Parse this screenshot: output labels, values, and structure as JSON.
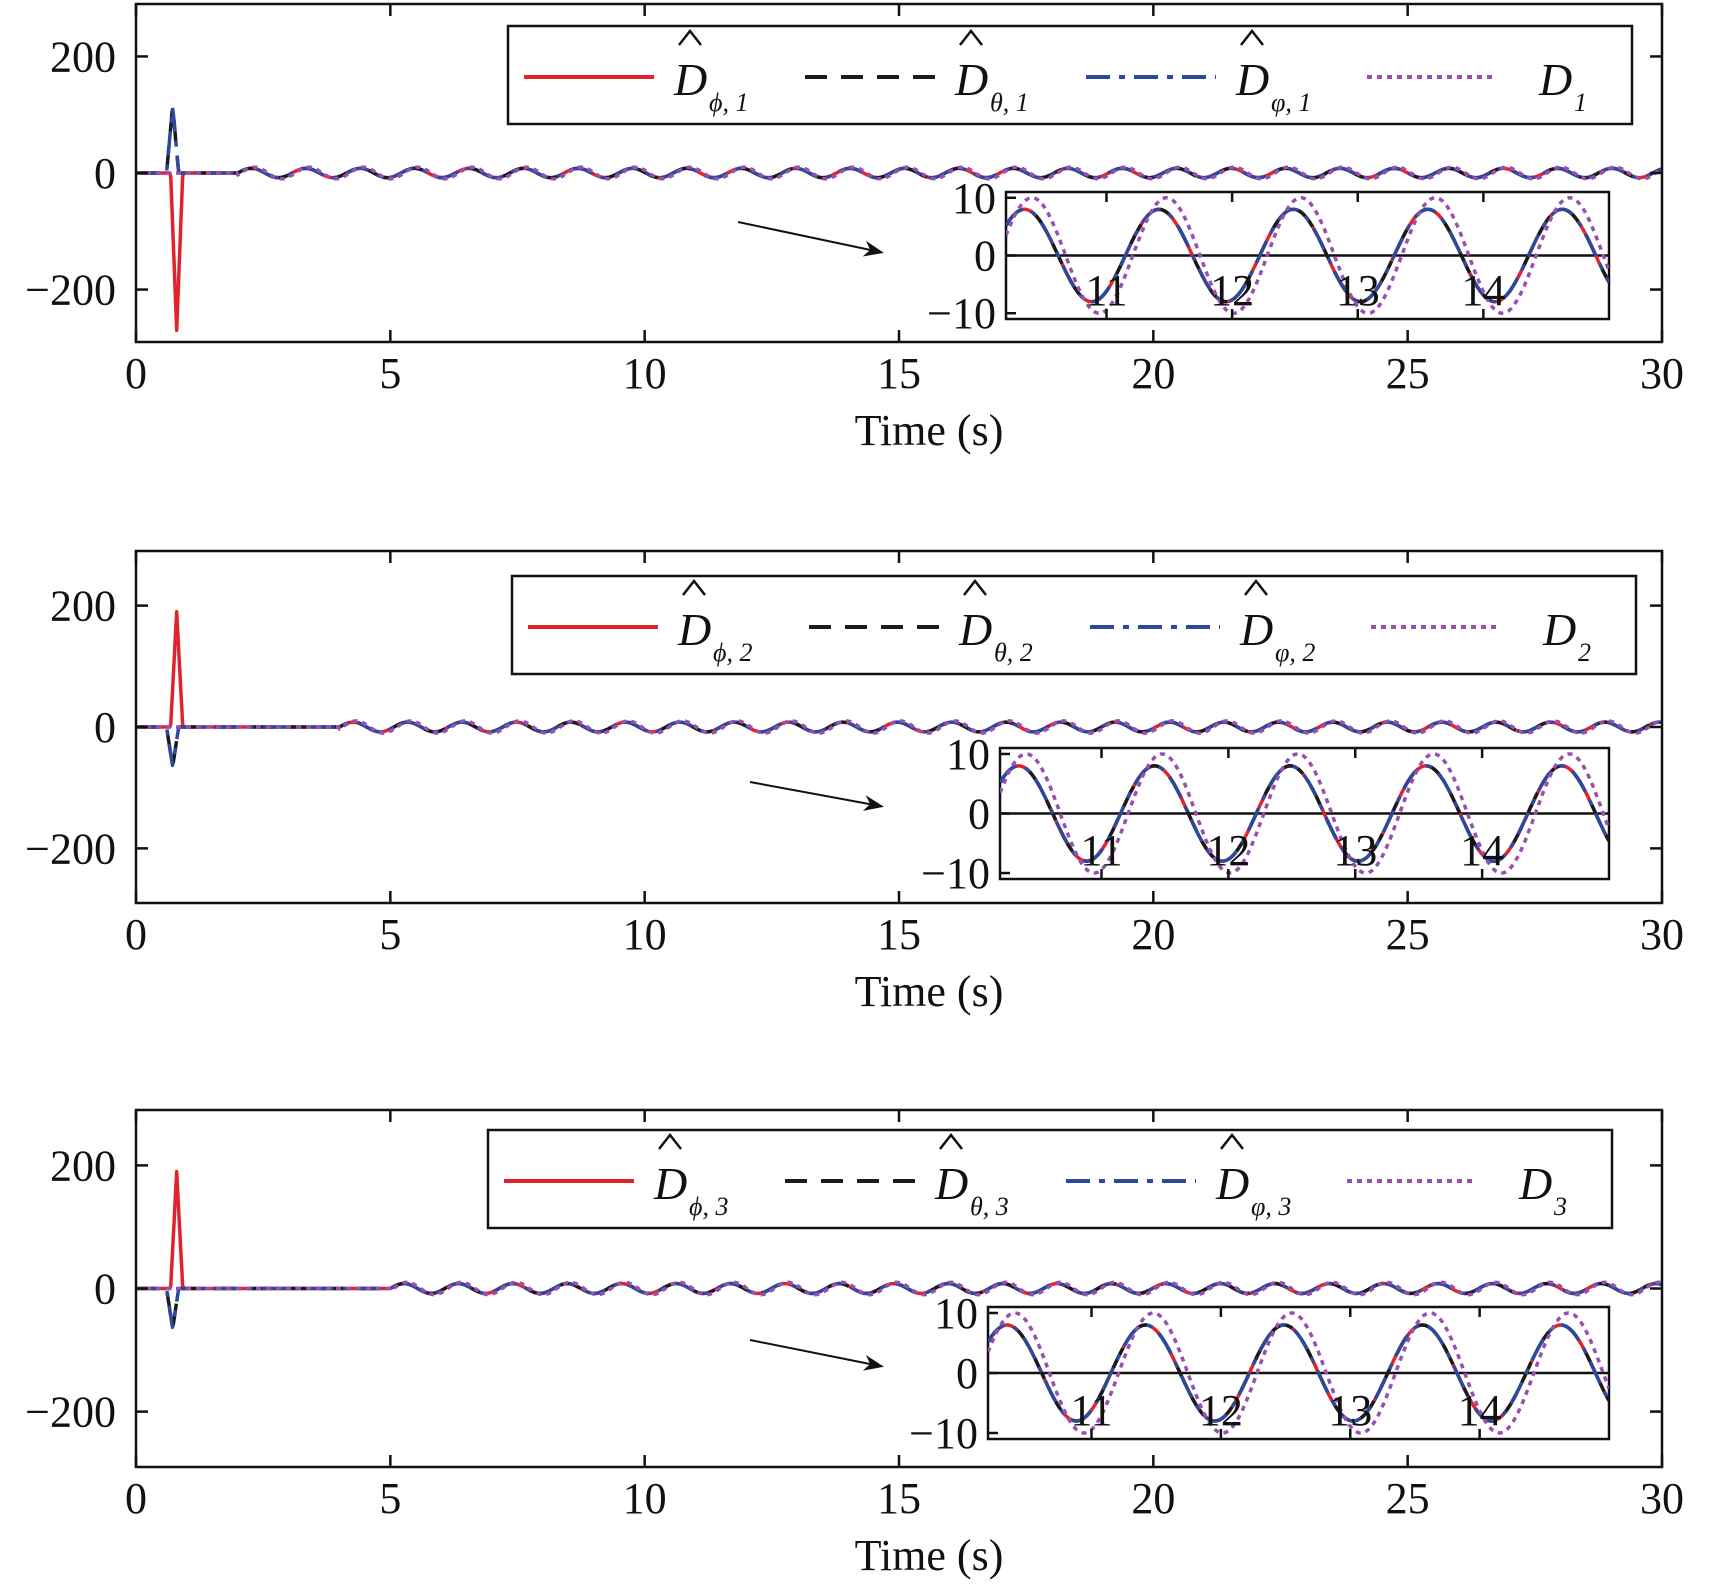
{
  "chart_data": [
    {
      "type": "line",
      "panel": 1,
      "xlabel": "Time (s)",
      "ylabel": "",
      "xlim": [
        0,
        30
      ],
      "ylim": [
        -290,
        290
      ],
      "xticks": [
        0,
        5,
        10,
        15,
        20,
        25,
        30
      ],
      "yticks": [
        -200,
        0,
        200
      ],
      "grid": false,
      "legend": {
        "placement": "top-right",
        "columns": 4
      },
      "signal": {
        "amplitude": 8,
        "period": 1.07,
        "start": 2.0,
        "spike_time": 0.8,
        "spike_red": -270,
        "spike_blue": 115
      },
      "series": [
        {
          "name": "D̂_{ϕ,1}",
          "base": "D",
          "sub": "ϕ, 1",
          "hat": true,
          "color": "#e3232b",
          "style": "solid"
        },
        {
          "name": "D̂_{θ,1}",
          "base": "D",
          "sub": "θ, 1",
          "hat": true,
          "color": "#1a1a1a",
          "style": "dashed"
        },
        {
          "name": "D̂_{φ,1}",
          "base": "D",
          "sub": "φ, 1",
          "hat": true,
          "color": "#2c4a9c",
          "style": "dashdot"
        },
        {
          "name": "D_1",
          "base": "D",
          "sub": "1",
          "hat": false,
          "color": "#9a4fb0",
          "style": "dotted"
        }
      ],
      "inset": {
        "xlim": [
          10.2,
          15.0
        ],
        "ylim": [
          -11,
          11
        ],
        "xticks": [
          11,
          12,
          13,
          14
        ],
        "yticks": [
          -10,
          0,
          10
        ]
      }
    },
    {
      "type": "line",
      "panel": 2,
      "xlabel": "Time (s)",
      "ylabel": "",
      "xlim": [
        0,
        30
      ],
      "ylim": [
        -290,
        290
      ],
      "xticks": [
        0,
        5,
        10,
        15,
        20,
        25,
        30
      ],
      "yticks": [
        -200,
        0,
        200
      ],
      "grid": false,
      "legend": {
        "placement": "top-right",
        "columns": 4
      },
      "signal": {
        "amplitude": 8,
        "period": 1.07,
        "start": 4.0,
        "spike_time": 0.8,
        "spike_red": 190,
        "spike_blue": -65
      },
      "series": [
        {
          "name": "D̂_{ϕ,2}",
          "base": "D",
          "sub": "ϕ, 2",
          "hat": true,
          "color": "#e3232b",
          "style": "solid"
        },
        {
          "name": "D̂_{θ,2}",
          "base": "D",
          "sub": "θ, 2",
          "hat": true,
          "color": "#1a1a1a",
          "style": "dashed"
        },
        {
          "name": "D̂_{φ,2}",
          "base": "D",
          "sub": "φ, 2",
          "hat": true,
          "color": "#2c4a9c",
          "style": "dashdot"
        },
        {
          "name": "D_2",
          "base": "D",
          "sub": "2",
          "hat": false,
          "color": "#9a4fb0",
          "style": "dotted"
        }
      ],
      "inset": {
        "xlim": [
          10.2,
          15.0
        ],
        "ylim": [
          -11,
          11
        ],
        "xticks": [
          11,
          12,
          13,
          14
        ],
        "yticks": [
          -10,
          0,
          10
        ]
      }
    },
    {
      "type": "line",
      "panel": 3,
      "xlabel": "Time (s)",
      "ylabel": "",
      "xlim": [
        0,
        30
      ],
      "ylim": [
        -290,
        290
      ],
      "xticks": [
        0,
        5,
        10,
        15,
        20,
        25,
        30
      ],
      "yticks": [
        -200,
        0,
        200
      ],
      "grid": false,
      "legend": {
        "placement": "top-right",
        "columns": 4
      },
      "signal": {
        "amplitude": 8,
        "period": 1.07,
        "start": 5.0,
        "spike_time": 0.8,
        "spike_red": 190,
        "spike_blue": -65
      },
      "series": [
        {
          "name": "D̂_{ϕ,3}",
          "base": "D",
          "sub": "ϕ, 3",
          "hat": true,
          "color": "#e3232b",
          "style": "solid"
        },
        {
          "name": "D̂_{θ,3}",
          "base": "D",
          "sub": "θ, 3",
          "hat": true,
          "color": "#1a1a1a",
          "style": "dashed"
        },
        {
          "name": "D̂_{φ,3}",
          "base": "D",
          "sub": "φ, 3",
          "hat": true,
          "color": "#2c4a9c",
          "style": "dashdot"
        },
        {
          "name": "D_3",
          "base": "D",
          "sub": "3",
          "hat": false,
          "color": "#9a4fb0",
          "style": "dotted"
        }
      ],
      "inset": {
        "xlim": [
          10.2,
          15.0
        ],
        "ylim": [
          -11,
          11
        ],
        "xticks": [
          11,
          12,
          13,
          14
        ],
        "yticks": [
          -10,
          0,
          10
        ]
      }
    }
  ]
}
